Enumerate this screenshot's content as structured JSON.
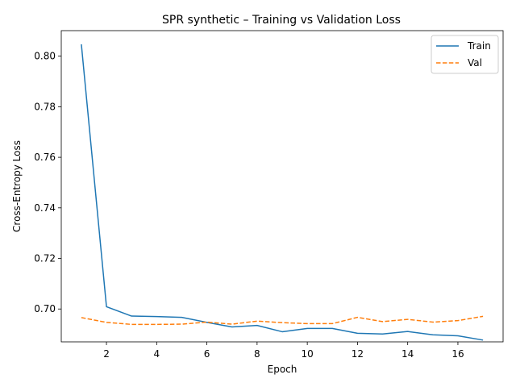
{
  "chart_data": {
    "type": "line",
    "title": "SPR synthetic – Training vs Validation Loss",
    "xlabel": "Epoch",
    "ylabel": "Cross-Entropy Loss",
    "x": [
      1,
      2,
      3,
      4,
      5,
      6,
      7,
      8,
      9,
      10,
      11,
      12,
      13,
      14,
      15,
      16,
      17
    ],
    "xlim": [
      0.2,
      17.8
    ],
    "ylim": [
      0.687,
      0.8101
    ],
    "xticks": [
      2,
      4,
      6,
      8,
      10,
      12,
      14,
      16
    ],
    "yticks": [
      0.7,
      0.72,
      0.74,
      0.76,
      0.78,
      0.8
    ],
    "ytick_labels": [
      "0.70",
      "0.72",
      "0.74",
      "0.76",
      "0.78",
      "0.80"
    ],
    "grid": false,
    "legend_position": "top-right",
    "series": [
      {
        "name": "Train",
        "color": "#1f77b4",
        "style": "solid",
        "values": [
          0.8047,
          0.7009,
          0.6972,
          0.697,
          0.6967,
          0.6947,
          0.6929,
          0.6935,
          0.691,
          0.6923,
          0.6923,
          0.6904,
          0.6901,
          0.6911,
          0.6898,
          0.6894,
          0.6877
        ]
      },
      {
        "name": "Val",
        "color": "#ff7f0e",
        "style": "dashed",
        "values": [
          0.6966,
          0.6947,
          0.6939,
          0.6939,
          0.694,
          0.6948,
          0.694,
          0.6952,
          0.6946,
          0.6942,
          0.6942,
          0.6967,
          0.695,
          0.6959,
          0.6948,
          0.6954,
          0.6971
        ]
      }
    ]
  }
}
